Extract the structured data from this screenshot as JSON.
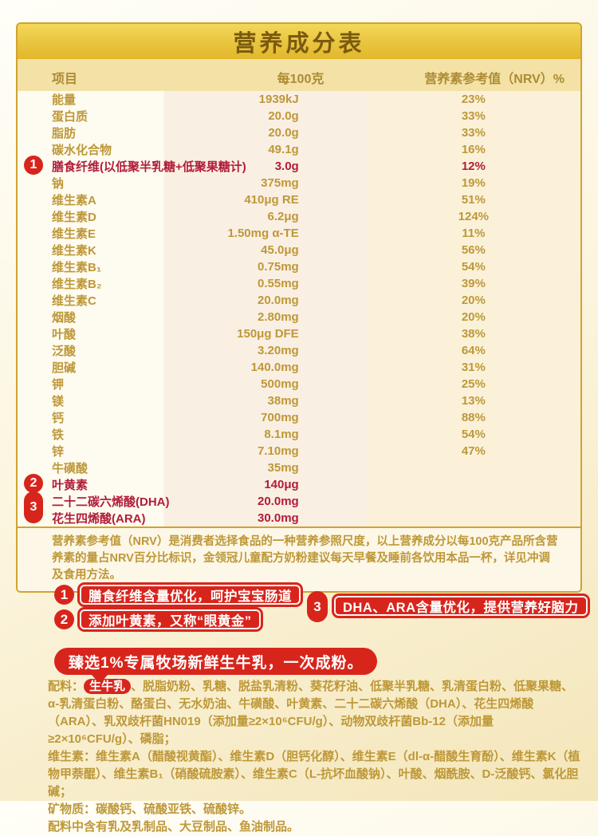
{
  "colors": {
    "gold_border": "#D1A32F",
    "banner_gold": "#E8C33C",
    "text_gold": "#BE9838",
    "highlight_red": "#B01D39",
    "accent_red": "#D8251C"
  },
  "table": {
    "title": "营养成分表",
    "columns": {
      "item": "项目",
      "per": "每100克",
      "nrv": "营养素参考值（NRV）%"
    },
    "rows": [
      {
        "label": "能量",
        "value": "1939kJ",
        "nrv": "23%",
        "highlight": false
      },
      {
        "label": "蛋白质",
        "value": "20.0g",
        "nrv": "33%",
        "highlight": false
      },
      {
        "label": "脂肪",
        "value": "20.0g",
        "nrv": "33%",
        "highlight": false
      },
      {
        "label": "碳水化合物",
        "value": "49.1g",
        "nrv": "16%",
        "highlight": false
      },
      {
        "label": "膳食纤维(以低聚半乳糖+低聚果糖计)",
        "value": "3.0g",
        "nrv": "12%",
        "highlight": true
      },
      {
        "label": "钠",
        "value": "375mg",
        "nrv": "19%",
        "highlight": false
      },
      {
        "label": "维生素A",
        "value": "410μg RE",
        "nrv": "51%",
        "highlight": false
      },
      {
        "label": "维生素D",
        "value": "6.2μg",
        "nrv": "124%",
        "highlight": false
      },
      {
        "label": "维生素E",
        "value": "1.50mg α-TE",
        "nrv": "11%",
        "highlight": false
      },
      {
        "label": "维生素K",
        "value": "45.0μg",
        "nrv": "56%",
        "highlight": false
      },
      {
        "label": "维生素B₁",
        "value": "0.75mg",
        "nrv": "54%",
        "highlight": false
      },
      {
        "label": "维生素B₂",
        "value": "0.55mg",
        "nrv": "39%",
        "highlight": false
      },
      {
        "label": "维生素C",
        "value": "20.0mg",
        "nrv": "20%",
        "highlight": false
      },
      {
        "label": "烟酸",
        "value": "2.80mg",
        "nrv": "20%",
        "highlight": false
      },
      {
        "label": "叶酸",
        "value": "150μg DFE",
        "nrv": "38%",
        "highlight": false
      },
      {
        "label": "泛酸",
        "value": "3.20mg",
        "nrv": "64%",
        "highlight": false
      },
      {
        "label": "胆碱",
        "value": "140.0mg",
        "nrv": "31%",
        "highlight": false
      },
      {
        "label": "钾",
        "value": "500mg",
        "nrv": "25%",
        "highlight": false
      },
      {
        "label": "镁",
        "value": "38mg",
        "nrv": "13%",
        "highlight": false
      },
      {
        "label": "钙",
        "value": "700mg",
        "nrv": "88%",
        "highlight": false
      },
      {
        "label": "铁",
        "value": "8.1mg",
        "nrv": "54%",
        "highlight": false
      },
      {
        "label": "锌",
        "value": "7.10mg",
        "nrv": "47%",
        "highlight": false
      },
      {
        "label": "牛磺酸",
        "value": "35mg",
        "nrv": "",
        "highlight": false
      },
      {
        "label": "叶黄素",
        "value": "140μg",
        "nrv": "",
        "highlight": true
      },
      {
        "label": "二十二碳六烯酸(DHA)",
        "value": "20.0mg",
        "nrv": "",
        "highlight": true
      },
      {
        "label": "花生四烯酸(ARA)",
        "value": "30.0mg",
        "nrv": "",
        "highlight": true
      }
    ],
    "markers": [
      {
        "num": "1"
      },
      {
        "num": "2"
      },
      {
        "num": "3"
      }
    ],
    "note": "营养素参考值（NRV）是消费者选择食品的一种营养参照尺度，以上营养成分以每100克产品所含营养素的量占NRV百分比标识，金领冠儿童配方奶粉建议每天早餐及睡前各饮用本品一杯，详见冲调及食用方法。"
  },
  "callouts": [
    {
      "num": "1",
      "text": "膳食纤维含量优化，呵护宝宝肠道"
    },
    {
      "num": "2",
      "text": "添加叶黄素，又称“眼黄金”"
    },
    {
      "num": "3",
      "text": "DHA、ARA含量优化，提供营养好脑力"
    }
  ],
  "banner": {
    "text": "臻选1%专属牧场新鲜生牛乳，一次成粉。"
  },
  "ingredients": {
    "prefix": "配料：",
    "highlight": "生牛乳",
    "main": "、脱脂奶粉、乳糖、脱盐乳清粉、葵花籽油、低聚半乳糖、乳清蛋白粉、低聚果糖、α-乳清蛋白粉、酪蛋白、无水奶油、牛磺酸、叶黄素、二十二碳六烯酸（DHA）、花生四烯酸（ARA）、乳双歧杆菌HN019（添加量≥2×10⁶CFU/g）、动物双歧杆菌Bb-12（添加量≥2×10⁶CFU/g）、磷脂；",
    "vitamins": "维生素：维生素A（醋酸视黄酯）、维生素D（胆钙化醇）、维生素E（dl-α-醋酸生育酚）、维生素K（植物甲萘醌）、维生素B₁（硝酸硫胺素）、维生素C（L-抗坏血酸钠）、叶酸、烟酰胺、D-泛酸钙、氯化胆碱；",
    "minerals": "矿物质：碳酸钙、硫酸亚铁、硫酸锌。",
    "allergen": "配料中含有乳及乳制品、大豆制品、鱼油制品。"
  }
}
